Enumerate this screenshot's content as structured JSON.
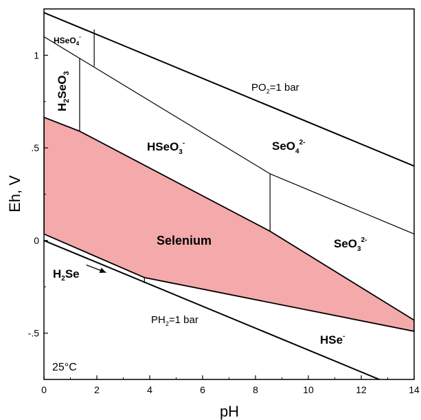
{
  "diagram": {
    "type": "Eh-pH diagram",
    "temperature_label": "25°C",
    "colors": {
      "selenium_fill": "#f4a9ab",
      "line": "#000000",
      "background": "#ffffff"
    },
    "axes": {
      "x": {
        "label": "pH",
        "range": [
          0,
          14
        ],
        "ticks": [
          {
            "value": 0,
            "label": "0"
          },
          {
            "value": 2,
            "label": "2"
          },
          {
            "value": 4,
            "label": "4"
          },
          {
            "value": 6,
            "label": "6"
          },
          {
            "value": 8,
            "label": "8"
          },
          {
            "value": 10,
            "label": "10"
          },
          {
            "value": 12,
            "label": "12"
          },
          {
            "value": 14,
            "label": "14"
          }
        ]
      },
      "y": {
        "label": "Eh, V",
        "range": [
          -0.75,
          1.25
        ],
        "ticks": [
          {
            "value": -0.5,
            "label": "-.5"
          },
          {
            "value": 0,
            "label": "0"
          },
          {
            "value": 0.5,
            "label": ".5"
          },
          {
            "value": 1,
            "label": "1"
          }
        ]
      }
    },
    "regions": {
      "hseo4": {
        "base": "HSeO",
        "sub": "4",
        "sup": "-"
      },
      "h2seo3": {
        "p1": "H",
        "sub1": "2",
        "p2": "SeO",
        "sub2": "3"
      },
      "hseo3": {
        "base": "HSeO",
        "sub": "3",
        "sup": "-"
      },
      "seo4": {
        "base": "SeO",
        "sub": "4",
        "sup": "2-"
      },
      "seo3": {
        "base": "SeO",
        "sub": "3",
        "sup": "2-"
      },
      "selenium": {
        "text": "Selenium"
      },
      "h2se": {
        "p1": "H",
        "sub": "2",
        "p2": "Se"
      },
      "hse": {
        "base": "HSe",
        "sup": "-"
      }
    },
    "water_limits": {
      "o2": {
        "p1": "PO",
        "sub": "2",
        "p2": "=1 bar"
      },
      "h2": {
        "p1": "PH",
        "sub": "2",
        "p2": "=1 bar"
      }
    },
    "lines": {
      "o2_limit": [
        [
          0,
          1.23
        ],
        [
          14,
          0.402
        ]
      ],
      "h2_limit": [
        [
          0,
          0.0
        ],
        [
          14,
          -0.828
        ]
      ],
      "hseo4_seo4": [
        [
          0,
          1.1
        ],
        [
          8.55,
          0.36
        ],
        [
          14,
          0.035
        ]
      ],
      "hseo4_h2seo3": [
        [
          1.9,
          1.14
        ],
        [
          1.9,
          0.94
        ]
      ],
      "h2seo3_hseo3": [
        [
          1.35,
          0.985
        ],
        [
          1.35,
          0.59
        ]
      ],
      "hseo3_seo3": [
        [
          8.55,
          0.36
        ],
        [
          8.55,
          0.05
        ]
      ],
      "h2se_hse": [
        [
          3.8,
          -0.23
        ],
        [
          3.8,
          -0.2
        ]
      ]
    },
    "selenium_field": [
      [
        0,
        0.665
      ],
      [
        1.35,
        0.59
      ],
      [
        8.55,
        0.05
      ],
      [
        14,
        -0.43
      ],
      [
        14,
        -0.49
      ],
      [
        3.8,
        -0.2
      ],
      [
        0,
        0.035
      ]
    ],
    "h2se_arrow": [
      [
        2.35,
        -0.173
      ],
      [
        1.6,
        -0.132
      ]
    ]
  }
}
